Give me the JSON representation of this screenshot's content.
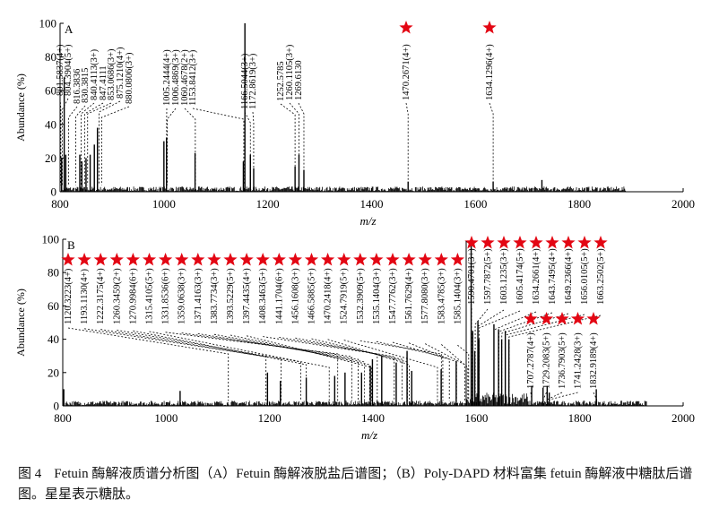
{
  "caption": {
    "number": "图 4",
    "text": "Fetuin 酶解液质谱分析图（A）Fetuin 酶解液脱盐后谱图；（B）Poly-DAPD 材料富集 fetuin 酶解液中糖肽后谱图。星星表示糖肽。"
  },
  "chart_data": [
    {
      "type": "bar",
      "panel_label": "A",
      "xlabel": "m/z",
      "ylabel": "Abundance (%)",
      "xlim": [
        800,
        2000
      ],
      "ylim": [
        0,
        100
      ],
      "xticks": [
        800,
        1000,
        1200,
        1400,
        1600,
        1800,
        2000
      ],
      "yticks": [
        0,
        20,
        40,
        60,
        80,
        100
      ],
      "peaks": [
        {
          "x": 808.0,
          "y": 68
        },
        {
          "x": 803.0,
          "y": 20
        },
        {
          "x": 811.0,
          "y": 22
        },
        {
          "x": 838.0,
          "y": 22
        },
        {
          "x": 842.0,
          "y": 18
        },
        {
          "x": 850.0,
          "y": 20
        },
        {
          "x": 858.0,
          "y": 22
        },
        {
          "x": 866.0,
          "y": 28
        },
        {
          "x": 872.0,
          "y": 38
        },
        {
          "x": 1000.0,
          "y": 30
        },
        {
          "x": 1005.0,
          "y": 32
        },
        {
          "x": 1060.0,
          "y": 23
        },
        {
          "x": 1153.0,
          "y": 18
        },
        {
          "x": 1156.0,
          "y": 100
        },
        {
          "x": 1166.5,
          "y": 22
        },
        {
          "x": 1172.9,
          "y": 14
        },
        {
          "x": 1252.6,
          "y": 15
        },
        {
          "x": 1260.1,
          "y": 22
        },
        {
          "x": 1269.6,
          "y": 13
        },
        {
          "x": 1470.3,
          "y": 6
        },
        {
          "x": 1634.1,
          "y": 6
        },
        {
          "x": 1728.0,
          "y": 7
        }
      ],
      "annotations": [
        {
          "x": 801.5837,
          "label": "801.5837(4+)",
          "glyco": false
        },
        {
          "x": 804.3904,
          "label": "804.3904(5+)",
          "glyco": false
        },
        {
          "x": 816.3836,
          "label": "816.3836",
          "glyco": false
        },
        {
          "x": 830.3815,
          "label": "830.3815",
          "glyco": false
        },
        {
          "x": 840.4113,
          "label": "840.4113(3+)",
          "glyco": false
        },
        {
          "x": 847.4111,
          "label": "847.4111",
          "glyco": false
        },
        {
          "x": 853.0686,
          "label": "853.0686(3+)",
          "glyco": false
        },
        {
          "x": 875.121,
          "label": "875.1210(4+)",
          "glyco": false
        },
        {
          "x": 880.0806,
          "label": "880.0806(3+)",
          "glyco": false
        },
        {
          "x": 1005.2444,
          "label": "1005.2444(4+)",
          "glyco": false
        },
        {
          "x": 1006.4869,
          "label": "1006.4869(3+)",
          "glyco": false
        },
        {
          "x": 1060.4678,
          "label": "1060.4678(2+)",
          "glyco": false
        },
        {
          "x": 1153.8412,
          "label": "1153.8412(3+)",
          "glyco": false
        },
        {
          "x": 1166.5044,
          "label": "1166.5044(3+)",
          "glyco": false
        },
        {
          "x": 1172.8619,
          "label": "1172.8619(3+)",
          "glyco": false
        },
        {
          "x": 1252.5785,
          "label": "1252.5785",
          "glyco": false
        },
        {
          "x": 1260.1105,
          "label": "1260.1105(3+)",
          "glyco": false
        },
        {
          "x": 1269.613,
          "label": "1269.6130",
          "glyco": false
        },
        {
          "x": 1470.2671,
          "label": "1470.2671(4+)",
          "glyco": true
        },
        {
          "x": 1634.1296,
          "label": "1634.1296(4+)",
          "glyco": true
        }
      ]
    },
    {
      "type": "bar",
      "panel_label": "B",
      "xlabel": "m/z",
      "ylabel": "Abundance (%)",
      "xlim": [
        800,
        2000
      ],
      "ylim": [
        0,
        100
      ],
      "xticks": [
        800,
        1000,
        1200,
        1400,
        1600,
        1800,
        2000
      ],
      "yticks": [
        0,
        20,
        40,
        60,
        80,
        100
      ],
      "peaks": [
        {
          "x": 802.0,
          "y": 10
        },
        {
          "x": 1027.0,
          "y": 9
        },
        {
          "x": 1196.0,
          "y": 20
        },
        {
          "x": 1221.0,
          "y": 15
        },
        {
          "x": 1271.0,
          "y": 17
        },
        {
          "x": 1326.0,
          "y": 18
        },
        {
          "x": 1346.0,
          "y": 20
        },
        {
          "x": 1378.0,
          "y": 20
        },
        {
          "x": 1395.0,
          "y": 24
        },
        {
          "x": 1399.0,
          "y": 28
        },
        {
          "x": 1417.0,
          "y": 30
        },
        {
          "x": 1445.0,
          "y": 26
        },
        {
          "x": 1466.0,
          "y": 33
        },
        {
          "x": 1475.0,
          "y": 21
        },
        {
          "x": 1532.0,
          "y": 22
        },
        {
          "x": 1561.0,
          "y": 27
        },
        {
          "x": 1590.0,
          "y": 98
        },
        {
          "x": 1593.0,
          "y": 45
        },
        {
          "x": 1597.0,
          "y": 33
        },
        {
          "x": 1603.0,
          "y": 51
        },
        {
          "x": 1605.0,
          "y": 40
        },
        {
          "x": 1634.0,
          "y": 49
        },
        {
          "x": 1643.0,
          "y": 46
        },
        {
          "x": 1649.0,
          "y": 40
        },
        {
          "x": 1656.0,
          "y": 45
        },
        {
          "x": 1663.0,
          "y": 40
        },
        {
          "x": 1707.0,
          "y": 12
        },
        {
          "x": 1729.0,
          "y": 11
        },
        {
          "x": 1737.0,
          "y": 12
        },
        {
          "x": 1741.0,
          "y": 8
        },
        {
          "x": 1832.0,
          "y": 10
        }
      ],
      "annotations": [
        {
          "x": 1120.3223,
          "label": "1120.3223(4+)",
          "glyco": true
        },
        {
          "x": 1193.113,
          "label": "1193.1130(4+)",
          "glyco": true
        },
        {
          "x": 1222.3175,
          "label": "1222.3175(4+)",
          "glyco": true
        },
        {
          "x": 1260.3459,
          "label": "1260.3459(2+)",
          "glyco": true
        },
        {
          "x": 1270.9984,
          "label": "1270.9984(6+)",
          "glyco": true
        },
        {
          "x": 1315.4105,
          "label": "1315.4105(5+)",
          "glyco": true
        },
        {
          "x": 1331.8536,
          "label": "1331.8536(6+)",
          "glyco": true
        },
        {
          "x": 1359.0638,
          "label": "1359.0638(3+)",
          "glyco": true
        },
        {
          "x": 1371.4163,
          "label": "1371.4163(3+)",
          "glyco": true
        },
        {
          "x": 1383.7734,
          "label": "1383.7734(3+)",
          "glyco": true
        },
        {
          "x": 1393.5229,
          "label": "1393.5229(5+)",
          "glyco": true
        },
        {
          "x": 1397.4435,
          "label": "1397.4435(4+)",
          "glyco": true
        },
        {
          "x": 1408.3463,
          "label": "1408.3463(5+)",
          "glyco": true
        },
        {
          "x": 1441.1704,
          "label": "1441.1704(6+)",
          "glyco": true
        },
        {
          "x": 1456.1608,
          "label": "1456.1608(3+)",
          "glyco": true
        },
        {
          "x": 1466.5885,
          "label": "1466.5885(5+)",
          "glyco": true
        },
        {
          "x": 1470.2418,
          "label": "1470.2418(4+)",
          "glyco": true
        },
        {
          "x": 1524.7919,
          "label": "1524.7919(5+)",
          "glyco": true
        },
        {
          "x": 1532.3909,
          "label": "1532.3909(5+)",
          "glyco": true
        },
        {
          "x": 1535.1404,
          "label": "1535.1404(3+)",
          "glyco": true
        },
        {
          "x": 1547.7762,
          "label": "1547.7762(3+)",
          "glyco": true
        },
        {
          "x": 1561.7629,
          "label": "1561.7629(4+)",
          "glyco": true
        },
        {
          "x": 1577.808,
          "label": "1577.8080(3+)",
          "glyco": true
        },
        {
          "x": 1583.4785,
          "label": "1583.4785(3+)",
          "glyco": true
        },
        {
          "x": 1585.1404,
          "label": "1585.1404(3+)",
          "glyco": true
        },
        {
          "x": 1590.4701,
          "label": "1590.4701(3+)",
          "glyco": true
        },
        {
          "x": 1597.7872,
          "label": "1597.7872(5+)",
          "glyco": true
        },
        {
          "x": 1603.1235,
          "label": "1603.1235(3+)",
          "glyco": true
        },
        {
          "x": 1605.4174,
          "label": "1605.4174(5+)",
          "glyco": true
        },
        {
          "x": 1634.2661,
          "label": "1634.2661(4+)",
          "glyco": true
        },
        {
          "x": 1643.7495,
          "label": "1643.7495(4+)",
          "glyco": true
        },
        {
          "x": 1649.2366,
          "label": "1649.2366(4+)",
          "glyco": true
        },
        {
          "x": 1656.0105,
          "label": "1656.0105(5+)",
          "glyco": true
        },
        {
          "x": 1663.2502,
          "label": "1663.2502(5+)",
          "glyco": true
        },
        {
          "x": 1707.2787,
          "label": "1707.2787(4+)",
          "glyco": true
        },
        {
          "x": 1729.2083,
          "label": "1729.2083(5+)",
          "glyco": true
        },
        {
          "x": 1736.7903,
          "label": "1736.7903(5+)",
          "glyco": true
        },
        {
          "x": 1741.2428,
          "label": "1741.2428(3+)",
          "glyco": true
        },
        {
          "x": 1832.9189,
          "label": "1832.9189(4+)",
          "glyco": true
        }
      ]
    }
  ]
}
